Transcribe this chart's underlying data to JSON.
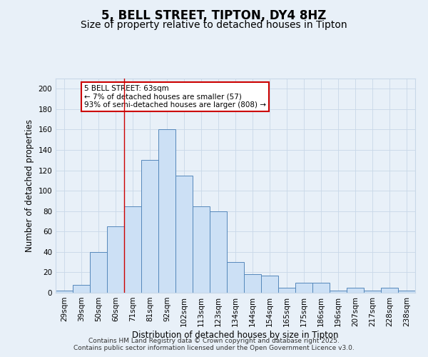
{
  "title": "5, BELL STREET, TIPTON, DY4 8HZ",
  "subtitle": "Size of property relative to detached houses in Tipton",
  "xlabel": "Distribution of detached houses by size in Tipton",
  "ylabel": "Number of detached properties",
  "categories": [
    "29sqm",
    "39sqm",
    "50sqm",
    "60sqm",
    "71sqm",
    "81sqm",
    "92sqm",
    "102sqm",
    "113sqm",
    "123sqm",
    "134sqm",
    "144sqm",
    "154sqm",
    "165sqm",
    "175sqm",
    "186sqm",
    "196sqm",
    "207sqm",
    "217sqm",
    "228sqm",
    "238sqm"
  ],
  "values": [
    2,
    8,
    40,
    65,
    85,
    130,
    160,
    115,
    85,
    80,
    30,
    18,
    17,
    5,
    10,
    10,
    2,
    5,
    2,
    5,
    2
  ],
  "bar_color": "#cce0f5",
  "bar_edge_color": "#5588bb",
  "grid_color": "#c8d8e8",
  "background_color": "#e8f0f8",
  "ylim": [
    0,
    210
  ],
  "yticks": [
    0,
    20,
    40,
    60,
    80,
    100,
    120,
    140,
    160,
    180,
    200
  ],
  "red_line_index": 3.5,
  "annotation_line1": "5 BELL STREET: 63sqm",
  "annotation_line2": "← 7% of detached houses are smaller (57)",
  "annotation_line3": "93% of semi-detached houses are larger (808) →",
  "annotation_box_color": "#ffffff",
  "annotation_border_color": "#cc0000",
  "footer_text": "Contains HM Land Registry data © Crown copyright and database right 2025.\nContains public sector information licensed under the Open Government Licence v3.0.",
  "title_fontsize": 12,
  "subtitle_fontsize": 10,
  "axis_label_fontsize": 8.5,
  "tick_fontsize": 7.5,
  "annotation_fontsize": 7.5,
  "footer_fontsize": 6.5
}
